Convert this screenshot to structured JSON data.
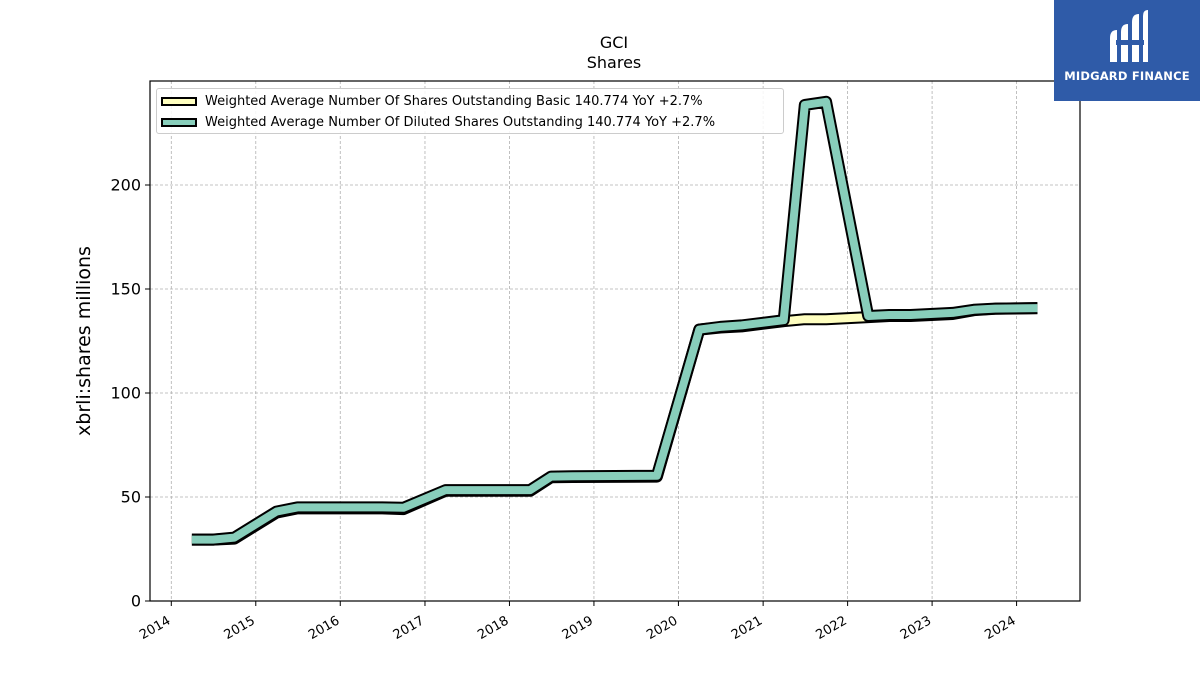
{
  "chart_data": {
    "type": "line",
    "title": "GCI",
    "subtitle": "Shares",
    "ylabel": "xbrli:shares millions",
    "xlabel": "",
    "x_ticks": [
      "2014",
      "2015",
      "2016",
      "2017",
      "2018",
      "2019",
      "2020",
      "2021",
      "2022",
      "2023",
      "2024"
    ],
    "y_ticks": [
      "0",
      "50",
      "100",
      "150",
      "200"
    ],
    "ylim": [
      0,
      250
    ],
    "xlim": [
      "2013-10-01",
      "2024-10-01"
    ],
    "grid": true,
    "legend_position": "top-left",
    "series": [
      {
        "name": "Weighted Average Number Of Shares Outstanding Basic",
        "legend_label": "Weighted Average Number Of Shares Outstanding Basic  140.774 YoY +2.7%",
        "color": "#ffffc0",
        "points": [
          [
            "2014-03-31",
            29.5
          ],
          [
            "2014-06-30",
            29.5
          ],
          [
            "2014-09-30",
            30.0
          ],
          [
            "2015-03-31",
            42.5
          ],
          [
            "2015-06-30",
            44.5
          ],
          [
            "2015-09-30",
            44.5
          ],
          [
            "2016-06-30",
            44.5
          ],
          [
            "2016-09-30",
            44.2
          ],
          [
            "2017-03-31",
            53.0
          ],
          [
            "2017-06-30",
            53.0
          ],
          [
            "2017-09-30",
            53.0
          ],
          [
            "2018-03-31",
            53.0
          ],
          [
            "2018-06-30",
            59.5
          ],
          [
            "2018-09-30",
            59.6
          ],
          [
            "2019-09-30",
            59.8
          ],
          [
            "2020-03-31",
            130.5
          ],
          [
            "2020-06-30",
            131.5
          ],
          [
            "2020-09-30",
            132.0
          ],
          [
            "2021-03-31",
            134.5
          ],
          [
            "2021-06-30",
            135.5
          ],
          [
            "2021-09-30",
            135.5
          ],
          [
            "2022-03-31",
            136.5
          ],
          [
            "2022-06-30",
            137.0
          ],
          [
            "2022-09-30",
            137.0
          ],
          [
            "2023-03-31",
            138.0
          ],
          [
            "2023-06-30",
            139.8
          ],
          [
            "2023-09-30",
            140.5
          ],
          [
            "2024-03-31",
            140.8
          ]
        ]
      },
      {
        "name": "Weighted Average Number Of Diluted Shares Outstanding",
        "legend_label": "Weighted Average Number Of Diluted Shares Outstanding  140.774 YoY +2.7%",
        "color": "#88cebb",
        "points": [
          [
            "2014-03-31",
            29.5
          ],
          [
            "2014-06-30",
            29.5
          ],
          [
            "2014-09-30",
            30.5
          ],
          [
            "2015-03-31",
            43.0
          ],
          [
            "2015-06-30",
            45.0
          ],
          [
            "2015-09-30",
            45.0
          ],
          [
            "2016-06-30",
            45.0
          ],
          [
            "2016-09-30",
            44.8
          ],
          [
            "2017-03-31",
            53.3
          ],
          [
            "2017-06-30",
            53.3
          ],
          [
            "2017-09-30",
            53.3
          ],
          [
            "2018-03-31",
            53.3
          ],
          [
            "2018-06-30",
            59.8
          ],
          [
            "2018-09-30",
            60.0
          ],
          [
            "2019-09-30",
            60.2
          ],
          [
            "2020-03-31",
            130.5
          ],
          [
            "2020-06-30",
            131.8
          ],
          [
            "2020-09-30",
            132.5
          ],
          [
            "2021-03-31",
            135.0
          ],
          [
            "2021-06-30",
            238.5
          ],
          [
            "2021-09-30",
            240.0
          ],
          [
            "2022-03-31",
            137.0
          ],
          [
            "2022-06-30",
            137.5
          ],
          [
            "2022-09-30",
            137.5
          ],
          [
            "2023-03-31",
            138.5
          ],
          [
            "2023-06-30",
            140.0
          ],
          [
            "2023-09-30",
            140.6
          ],
          [
            "2024-03-31",
            140.8
          ]
        ]
      }
    ]
  },
  "logo": {
    "text": "MIDGARD FINANCE",
    "bg_color": "#2f5ba8"
  }
}
